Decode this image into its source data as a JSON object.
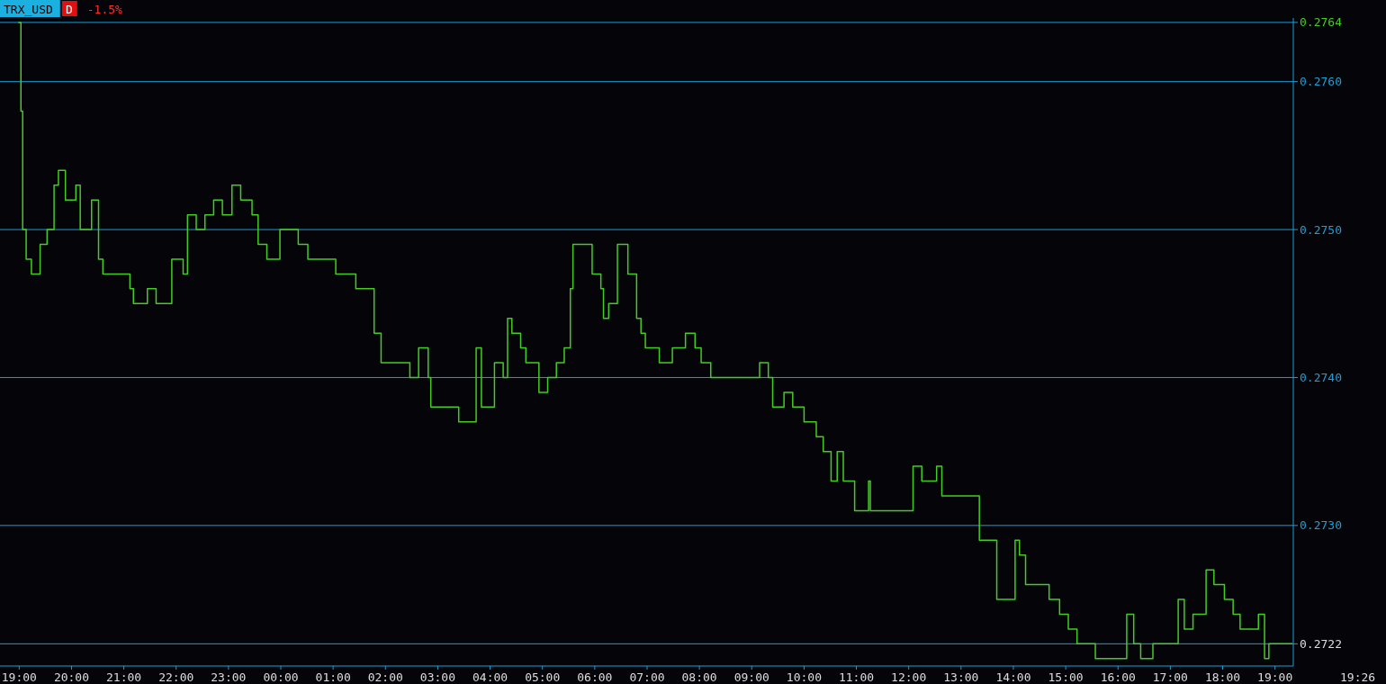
{
  "chart_data": {
    "type": "step",
    "title": "TRX_USD",
    "annotations": [
      "D",
      "-1.5%",
      "19:26"
    ],
    "x": [
      "--01-01T18:59",
      "--01-01T19:02",
      "--01-01T19:04",
      "--01-01T19:08",
      "--01-01T19:14",
      "--01-01T19:24",
      "--01-01T19:32",
      "--01-01T19:40",
      "--01-01T19:45",
      "--01-01T19:53",
      "--01-01T20:05",
      "--01-01T20:10",
      "--01-01T20:23",
      "--01-01T20:31",
      "--01-01T20:36",
      "--01-01T21:01",
      "--01-01T21:07",
      "--01-01T21:11",
      "--01-01T21:27",
      "--01-01T21:37",
      "--01-01T21:47",
      "--01-01T21:55",
      "--01-01T22:08",
      "--01-01T22:13",
      "--01-01T22:23",
      "--01-01T22:33",
      "--01-01T22:43",
      "--01-01T22:53",
      "--01-01T23:04",
      "--01-01T23:14",
      "--01-01T23:27",
      "--01-01T23:34",
      "--01-01T23:44",
      "--01-01T23:59",
      "--01-02T00:20",
      "--01-02T00:31",
      "--01-02T00:56",
      "--01-02T01:03",
      "--01-02T01:22",
      "--01-02T01:26",
      "--01-02T01:42",
      "--01-02T01:47",
      "--01-02T01:55",
      "--01-02T02:13",
      "--01-02T02:28",
      "--01-02T02:38",
      "--01-02T02:49",
      "--01-02T02:52",
      "--01-02T03:14",
      "--01-02T03:24",
      "--01-02T03:40",
      "--01-02T03:44",
      "--01-02T03:50",
      "--01-02T04:05",
      "--01-02T04:15",
      "--01-02T04:20",
      "--01-02T04:25",
      "--01-02T04:35",
      "--01-02T04:41",
      "--01-02T04:56",
      "--01-02T05:06",
      "--01-02T05:16",
      "--01-02T05:25",
      "--01-02T05:32",
      "--01-02T05:35",
      "--01-02T05:47",
      "--01-02T05:57",
      "--01-02T06:07",
      "--01-02T06:10",
      "--01-02T06:16",
      "--01-02T06:23",
      "--01-02T06:26",
      "--01-02T06:38",
      "--01-02T06:48",
      "--01-02T06:53",
      "--01-02T06:58",
      "--01-02T07:14",
      "--01-02T07:29",
      "--01-02T07:44",
      "--01-02T07:55",
      "--01-02T08:02",
      "--01-02T08:13",
      "--01-02T09:01",
      "--01-02T09:09",
      "--01-02T09:19",
      "--01-02T09:24",
      "--01-02T09:37",
      "--01-02T09:47",
      "--01-02T09:54",
      "--01-02T10:00",
      "--01-02T10:14",
      "--01-02T10:22",
      "--01-02T10:31",
      "--01-02T10:38",
      "--01-02T10:45",
      "--01-02T10:58",
      "--01-02T11:14",
      "--01-02T11:16",
      "--01-02T11:59",
      "--01-02T12:05",
      "--01-02T12:15",
      "--01-02T12:25",
      "--01-02T12:32",
      "--01-02T12:38",
      "--01-02T13:16",
      "--01-02T13:21",
      "--01-02T13:37",
      "--01-02T13:41",
      "--01-02T13:57",
      "--01-02T14:02",
      "--01-02T14:07",
      "--01-02T14:14",
      "--01-02T14:28",
      "--01-02T14:41",
      "--01-02T14:53",
      "--01-02T15:03",
      "--01-02T15:13",
      "--01-02T15:29",
      "--01-02T15:34",
      "--01-02T16:04",
      "--01-02T16:10",
      "--01-02T16:18",
      "--01-02T16:26",
      "--01-02T16:40",
      "--01-02T17:01",
      "--01-02T17:09",
      "--01-02T17:16",
      "--01-02T17:26",
      "--01-02T17:37",
      "--01-02T17:41",
      "--01-02T17:50",
      "--01-02T18:02",
      "--01-02T18:12",
      "--01-02T18:20",
      "--01-02T18:38",
      "--01-02T18:41",
      "--01-02T18:48",
      "--01-02T18:53",
      "--01-02T19:20"
    ],
    "series": [
      {
        "color": "#44cc22",
        "values": [
          0.2764,
          0.2758,
          0.275,
          0.2748,
          0.2747,
          0.2749,
          0.275,
          0.2753,
          0.2754,
          0.2752,
          0.2753,
          0.275,
          0.2752,
          0.2748,
          0.2747,
          0.2747,
          0.2746,
          0.2745,
          0.2746,
          0.2745,
          0.2745,
          0.2748,
          0.2747,
          0.2751,
          0.275,
          0.2751,
          0.2752,
          0.2751,
          0.2753,
          0.2752,
          0.2751,
          0.2749,
          0.2748,
          0.275,
          0.2749,
          0.2748,
          0.2748,
          0.2747,
          0.2747,
          0.2746,
          0.2746,
          0.2743,
          0.2741,
          0.2741,
          0.274,
          0.2742,
          0.274,
          0.2738,
          0.2738,
          0.2737,
          0.2737,
          0.2742,
          0.2738,
          0.2741,
          0.274,
          0.2744,
          0.2743,
          0.2742,
          0.2741,
          0.2739,
          0.274,
          0.2741,
          0.2742,
          0.2746,
          0.2749,
          0.2749,
          0.2747,
          0.2746,
          0.2744,
          0.2745,
          0.2745,
          0.2749,
          0.2747,
          0.2744,
          0.2743,
          0.2742,
          0.2741,
          0.2742,
          0.2743,
          0.2742,
          0.2741,
          0.274,
          0.274,
          0.2741,
          0.274,
          0.2738,
          0.2739,
          0.2738,
          0.2738,
          0.2737,
          0.2736,
          0.2735,
          0.2733,
          0.2735,
          0.2733,
          0.2731,
          0.2733,
          0.2731,
          0.2731,
          0.2734,
          0.2733,
          0.2733,
          0.2734,
          0.2732,
          0.2732,
          0.2729,
          0.2729,
          0.2725,
          0.2725,
          0.2729,
          0.2728,
          0.2726,
          0.2726,
          0.2725,
          0.2724,
          0.2723,
          0.2722,
          0.2722,
          0.2721,
          0.2721,
          0.2724,
          0.2722,
          0.2721,
          0.2722,
          0.2722,
          0.2725,
          0.2723,
          0.2724,
          0.2724,
          0.2727,
          0.2726,
          0.2725,
          0.2724,
          0.2723,
          0.2723,
          0.2724,
          0.2721,
          0.2722,
          0.2722
        ]
      }
    ],
    "xlim": [
      "--01-01T18:38",
      "--01-02T19:21"
    ],
    "xticks": [
      {
        "value": "--01-01T19:00",
        "label": "19:00"
      },
      {
        "value": "--01-01T20:00",
        "label": "20:00"
      },
      {
        "value": "--01-01T21:00",
        "label": "21:00"
      },
      {
        "value": "--01-01T22:00",
        "label": "22:00"
      },
      {
        "value": "--01-01T23:00",
        "label": "23:00"
      },
      {
        "value": "--01-02T00:00",
        "label": "00:00"
      },
      {
        "value": "--01-02T01:00",
        "label": "01:00"
      },
      {
        "value": "--01-02T02:00",
        "label": "02:00"
      },
      {
        "value": "--01-02T03:00",
        "label": "03:00"
      },
      {
        "value": "--01-02T04:00",
        "label": "04:00"
      },
      {
        "value": "--01-02T05:00",
        "label": "05:00"
      },
      {
        "value": "--01-02T06:00",
        "label": "06:00"
      },
      {
        "value": "--01-02T07:00",
        "label": "07:00"
      },
      {
        "value": "--01-02T08:00",
        "label": "08:00"
      },
      {
        "value": "--01-02T09:00",
        "label": "09:00"
      },
      {
        "value": "--01-02T10:00",
        "label": "10:00"
      },
      {
        "value": "--01-02T11:00",
        "label": "11:00"
      },
      {
        "value": "--01-02T12:00",
        "label": "12:00"
      },
      {
        "value": "--01-02T13:00",
        "label": "13:00"
      },
      {
        "value": "--01-02T14:00",
        "label": "14:00"
      },
      {
        "value": "--01-02T15:00",
        "label": "15:00"
      },
      {
        "value": "--01-02T16:00",
        "label": "16:00"
      },
      {
        "value": "--01-02T17:00",
        "label": "17:00"
      },
      {
        "value": "--01-02T18:00",
        "label": "18:00"
      },
      {
        "value": "--01-02T19:00",
        "label": "19:00"
      }
    ],
    "ylim": [
      0.27205,
      0.27643
    ],
    "yticks": [
      0.2722,
      {
        "value": 0.273,
        "label": "0.2730"
      },
      {
        "value": 0.274,
        "label": "0.2740"
      },
      {
        "value": 0.275,
        "label": "0.2750"
      },
      {
        "value": 0.276,
        "label": "0.2760"
      },
      0.2764
    ],
    "grid": "y",
    "line_style": "solid"
  }
}
